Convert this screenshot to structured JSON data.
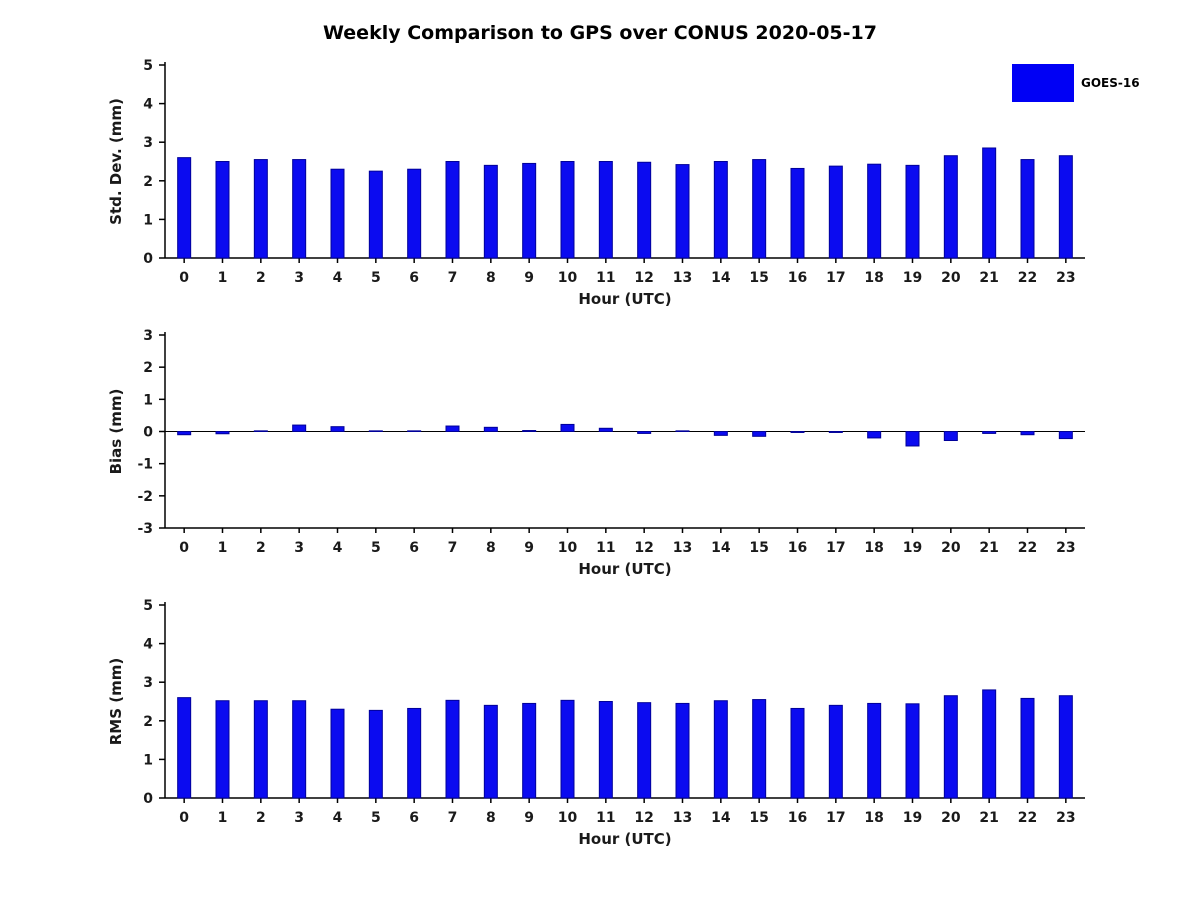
{
  "title": "Weekly Comparison to GPS over CONUS 2020-05-17",
  "legend": {
    "label": "GOES-16",
    "color": "#0000f5"
  },
  "chart_data": [
    {
      "type": "bar",
      "name": "std-dev",
      "title": "",
      "ylabel": "Std. Dev. (mm)",
      "xlabel": "Hour (UTC)",
      "categories": [
        "0",
        "1",
        "2",
        "3",
        "4",
        "5",
        "6",
        "7",
        "8",
        "9",
        "10",
        "11",
        "12",
        "13",
        "14",
        "15",
        "16",
        "17",
        "18",
        "19",
        "20",
        "21",
        "22",
        "23"
      ],
      "values": [
        2.6,
        2.5,
        2.55,
        2.55,
        2.3,
        2.25,
        2.3,
        2.5,
        2.4,
        2.45,
        2.5,
        2.5,
        2.48,
        2.42,
        2.5,
        2.55,
        2.32,
        2.38,
        2.43,
        2.4,
        2.65,
        2.85,
        2.55,
        2.65
      ],
      "ylim": [
        0,
        5
      ],
      "yticks": [
        0,
        1,
        2,
        3,
        4,
        5
      ],
      "grid": false,
      "series_name": "GOES-16",
      "bar_color": "#0b0bf0",
      "bar_edge_color": "#000099"
    },
    {
      "type": "bar",
      "name": "bias",
      "title": "",
      "ylabel": "Bias (mm)",
      "xlabel": "Hour (UTC)",
      "categories": [
        "0",
        "1",
        "2",
        "3",
        "4",
        "5",
        "6",
        "7",
        "8",
        "9",
        "10",
        "11",
        "12",
        "13",
        "14",
        "15",
        "16",
        "17",
        "18",
        "19",
        "20",
        "21",
        "22",
        "23"
      ],
      "values": [
        -0.1,
        -0.07,
        0.02,
        0.2,
        0.15,
        0.02,
        0.02,
        0.17,
        0.13,
        0.03,
        0.22,
        0.1,
        -0.06,
        0.02,
        -0.12,
        -0.15,
        -0.03,
        -0.03,
        -0.2,
        -0.45,
        -0.28,
        -0.06,
        -0.1,
        -0.22
      ],
      "ylim": [
        -3,
        3
      ],
      "yticks": [
        -3,
        -2,
        -1,
        0,
        1,
        2,
        3
      ],
      "grid": false,
      "series_name": "GOES-16",
      "bar_color": "#0b0bf0",
      "bar_edge_color": "#000099"
    },
    {
      "type": "bar",
      "name": "rms",
      "title": "",
      "ylabel": "RMS (mm)",
      "xlabel": "Hour (UTC)",
      "categories": [
        "0",
        "1",
        "2",
        "3",
        "4",
        "5",
        "6",
        "7",
        "8",
        "9",
        "10",
        "11",
        "12",
        "13",
        "14",
        "15",
        "16",
        "17",
        "18",
        "19",
        "20",
        "21",
        "22",
        "23"
      ],
      "values": [
        2.6,
        2.52,
        2.52,
        2.52,
        2.3,
        2.27,
        2.32,
        2.53,
        2.4,
        2.45,
        2.53,
        2.5,
        2.47,
        2.45,
        2.52,
        2.55,
        2.32,
        2.4,
        2.45,
        2.44,
        2.65,
        2.8,
        2.58,
        2.65
      ],
      "ylim": [
        0,
        5
      ],
      "yticks": [
        0,
        1,
        2,
        3,
        4,
        5
      ],
      "grid": false,
      "series_name": "GOES-16",
      "bar_color": "#0b0bf0",
      "bar_edge_color": "#000099"
    }
  ]
}
